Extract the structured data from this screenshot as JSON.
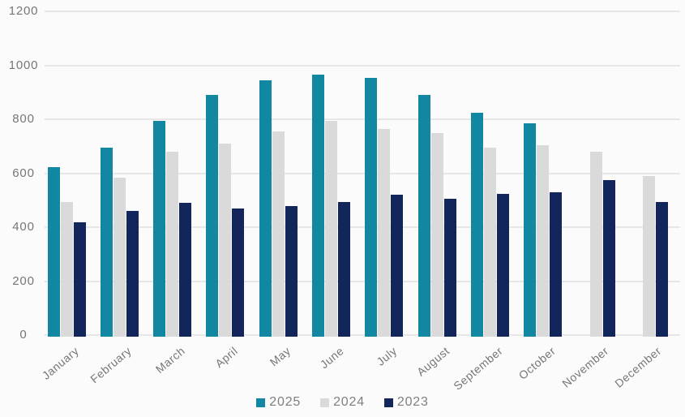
{
  "chart_data": {
    "type": "bar",
    "title": "",
    "xlabel": "",
    "ylabel": "",
    "categories": [
      "January",
      "February",
      "March",
      "April",
      "May",
      "June",
      "July",
      "August",
      "September",
      "October",
      "November",
      "December"
    ],
    "series": [
      {
        "name": "2025",
        "color": "#1187a1",
        "values": [
          630,
          700,
          800,
          895,
          950,
          970,
          960,
          895,
          830,
          790,
          null,
          null
        ]
      },
      {
        "name": "2024",
        "color": "#dadada",
        "values": [
          500,
          590,
          685,
          715,
          760,
          800,
          770,
          755,
          700,
          710,
          685,
          595
        ]
      },
      {
        "name": "2023",
        "color": "#13265c",
        "values": [
          425,
          465,
          495,
          475,
          485,
          500,
          525,
          510,
          530,
          535,
          580,
          500
        ]
      }
    ],
    "ylim": [
      0,
      1200
    ],
    "yticks": [
      0,
      200,
      400,
      600,
      800,
      1000,
      1200
    ],
    "grid": true,
    "legend_position": "bottom"
  },
  "colors": {
    "background": "#fbfbfb",
    "gridline": "#e7e7e7",
    "axis_text": "#767676",
    "legend_text": "#7f7f7f",
    "series_2025": "#1187a1",
    "series_2024": "#dadada",
    "series_2023": "#13265c"
  }
}
